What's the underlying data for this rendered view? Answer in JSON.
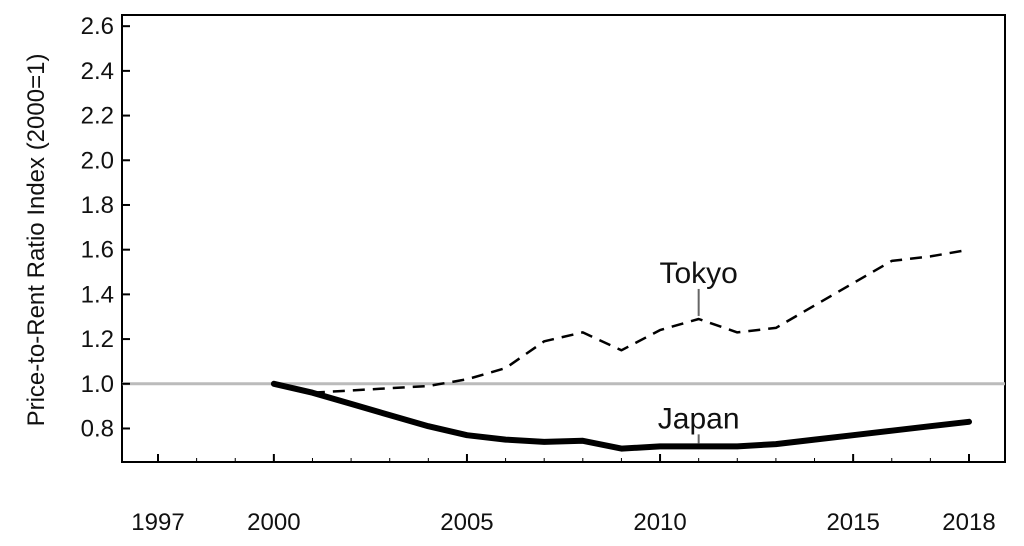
{
  "chart_data": {
    "type": "line",
    "title": "",
    "xlabel": "",
    "ylabel": "Price-to-Rent Ratio Index (2000=1)",
    "xlim": [
      1997,
      2018
    ],
    "ylim": [
      0.65,
      2.65
    ],
    "x_ticks": [
      1997,
      2000,
      2005,
      2010,
      2015,
      2018
    ],
    "y_ticks": [
      "0.8",
      "1.0",
      "1.2",
      "1.4",
      "1.6",
      "1.8",
      "2.0",
      "2.2",
      "2.4",
      "2.6"
    ],
    "grid": false,
    "reference_line": {
      "y": 1.0,
      "color": "#bbbbbb"
    },
    "series": [
      {
        "name": "Tokyo",
        "style": "dashed",
        "color": "#000000",
        "x": [
          2000,
          2001,
          2002,
          2003,
          2004,
          2005,
          2006,
          2007,
          2008,
          2009,
          2010,
          2011,
          2012,
          2013,
          2014,
          2015,
          2016,
          2017,
          2018
        ],
        "values": [
          1.0,
          0.96,
          0.97,
          0.98,
          0.99,
          1.02,
          1.07,
          1.19,
          1.23,
          1.15,
          1.24,
          1.29,
          1.23,
          1.25,
          1.35,
          1.45,
          1.55,
          1.57,
          1.6
        ],
        "label_anchor": {
          "x": 2011,
          "y": 1.29
        }
      },
      {
        "name": "Japan",
        "style": "solid",
        "color": "#000000",
        "x": [
          2000,
          2001,
          2002,
          2003,
          2004,
          2005,
          2006,
          2007,
          2008,
          2009,
          2010,
          2011,
          2012,
          2013,
          2014,
          2015,
          2016,
          2017,
          2018
        ],
        "values": [
          1.0,
          0.96,
          0.91,
          0.86,
          0.81,
          0.77,
          0.75,
          0.74,
          0.745,
          0.71,
          0.72,
          0.72,
          0.72,
          0.73,
          0.75,
          0.77,
          0.79,
          0.81,
          0.83
        ],
        "label_anchor": {
          "x": 2011,
          "y": 0.72
        }
      }
    ]
  }
}
